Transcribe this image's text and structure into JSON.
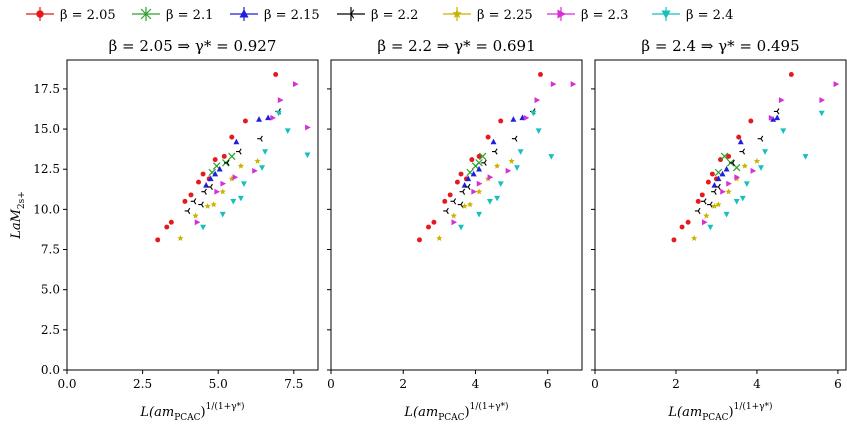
{
  "legend": [
    {
      "label": "β = 2.05",
      "color": "#e41a1c",
      "marker": "circle"
    },
    {
      "label": "β = 2.1",
      "color": "#2ca02c",
      "marker": "x"
    },
    {
      "label": "β = 2.15",
      "color": "#1f1fe0",
      "marker": "triangle-up"
    },
    {
      "label": "β = 2.2",
      "color": "#000000",
      "marker": "tri-left"
    },
    {
      "label": "β = 2.25",
      "color": "#c8b400",
      "marker": "star"
    },
    {
      "label": "β = 2.3",
      "color": "#d62fd6",
      "marker": "triangle-right"
    },
    {
      "label": "β = 2.4",
      "color": "#17bfbf",
      "marker": "triangle-down"
    }
  ],
  "chart_data": [
    {
      "type": "scatter",
      "title": "β = 2.05 ⇒ γ* = 0.927",
      "xlabel": "L(am_PCAC)^{1/(1+γ*)}",
      "ylabel": "LaM_{2s+}",
      "xlim": [
        0,
        8.3
      ],
      "ylim": [
        0,
        19.3
      ],
      "xticks": [
        "0.0",
        "2.5",
        "5.0",
        "7.5"
      ],
      "xtick_values": [
        0,
        2.5,
        5.0,
        7.5
      ],
      "yticks": [
        "0.0",
        "2.5",
        "5.0",
        "7.5",
        "10.0",
        "12.5",
        "15.0",
        "17.5"
      ],
      "ytick_values": [
        0,
        2.5,
        5.0,
        7.5,
        10.0,
        12.5,
        15.0,
        17.5
      ],
      "series": [
        {
          "name": "β = 2.05",
          "points": [
            [
              3.0,
              8.1
            ],
            [
              3.3,
              8.9
            ],
            [
              3.45,
              9.2
            ],
            [
              3.9,
              10.5
            ],
            [
              4.1,
              10.9
            ],
            [
              4.35,
              11.7
            ],
            [
              4.5,
              12.2
            ],
            [
              4.7,
              11.9
            ],
            [
              4.9,
              13.1
            ],
            [
              5.2,
              13.3
            ],
            [
              5.45,
              14.5
            ],
            [
              5.9,
              15.5
            ],
            [
              6.9,
              18.4
            ]
          ]
        },
        {
          "name": "β = 2.1",
          "points": [
            [
              4.8,
              12.3
            ],
            [
              4.95,
              12.7
            ],
            [
              5.25,
              12.9
            ],
            [
              5.45,
              13.3
            ]
          ]
        },
        {
          "name": "β = 2.15",
          "points": [
            [
              4.6,
              11.5
            ],
            [
              4.75,
              11.9
            ],
            [
              4.9,
              12.2
            ],
            [
              5.05,
              12.5
            ],
            [
              5.6,
              14.2
            ],
            [
              6.35,
              15.6
            ],
            [
              6.65,
              15.7
            ]
          ]
        },
        {
          "name": "β = 2.2",
          "points": [
            [
              4.0,
              9.9
            ],
            [
              4.2,
              10.5
            ],
            [
              4.45,
              10.3
            ],
            [
              4.55,
              11.1
            ],
            [
              4.75,
              11.4
            ],
            [
              5.3,
              12.9
            ],
            [
              5.7,
              13.6
            ],
            [
              6.4,
              14.4
            ],
            [
              7.0,
              16.1
            ]
          ]
        },
        {
          "name": "β = 2.25",
          "points": [
            [
              3.75,
              8.2
            ],
            [
              4.25,
              9.6
            ],
            [
              4.65,
              10.2
            ],
            [
              4.85,
              10.3
            ],
            [
              5.15,
              11.1
            ],
            [
              5.45,
              11.9
            ],
            [
              5.75,
              12.7
            ],
            [
              6.3,
              13.0
            ]
          ]
        },
        {
          "name": "β = 2.3",
          "points": [
            [
              4.3,
              9.2
            ],
            [
              4.95,
              11.1
            ],
            [
              5.15,
              11.6
            ],
            [
              5.55,
              12.0
            ],
            [
              6.2,
              12.4
            ],
            [
              6.8,
              15.7
            ],
            [
              7.05,
              16.8
            ],
            [
              7.55,
              17.8
            ],
            [
              7.95,
              15.1
            ]
          ]
        },
        {
          "name": "β = 2.4",
          "points": [
            [
              4.5,
              8.9
            ],
            [
              5.15,
              9.7
            ],
            [
              5.5,
              10.5
            ],
            [
              5.75,
              10.7
            ],
            [
              5.85,
              11.6
            ],
            [
              6.45,
              12.6
            ],
            [
              6.55,
              13.6
            ],
            [
              7.3,
              14.9
            ],
            [
              7.0,
              16.0
            ],
            [
              7.95,
              13.4
            ]
          ]
        }
      ]
    },
    {
      "type": "scatter",
      "title": "β = 2.2 ⇒ γ* = 0.691",
      "xlabel": "L(am_PCAC)^{1/(1+γ*)}",
      "xlim": [
        0,
        6.95
      ],
      "ylim": [
        0,
        19.3
      ],
      "xticks": [
        "0",
        "2",
        "4",
        "6"
      ],
      "xtick_values": [
        0,
        2,
        4,
        6
      ],
      "series": [
        {
          "name": "β = 2.05",
          "points": [
            [
              2.45,
              8.1
            ],
            [
              2.7,
              8.9
            ],
            [
              2.85,
              9.2
            ],
            [
              3.15,
              10.5
            ],
            [
              3.3,
              10.9
            ],
            [
              3.5,
              11.7
            ],
            [
              3.6,
              12.2
            ],
            [
              3.75,
              11.9
            ],
            [
              3.9,
              13.1
            ],
            [
              4.1,
              13.3
            ],
            [
              4.35,
              14.5
            ],
            [
              4.7,
              15.5
            ],
            [
              5.8,
              18.4
            ]
          ]
        },
        {
          "name": "β = 2.1",
          "points": [
            [
              3.85,
              12.3
            ],
            [
              4.0,
              12.7
            ],
            [
              4.1,
              12.9
            ],
            [
              4.2,
              13.3
            ]
          ]
        },
        {
          "name": "β = 2.15",
          "points": [
            [
              3.7,
              11.5
            ],
            [
              3.8,
              11.9
            ],
            [
              3.95,
              12.2
            ],
            [
              4.1,
              12.5
            ],
            [
              4.5,
              14.2
            ],
            [
              5.05,
              15.6
            ],
            [
              5.3,
              15.7
            ]
          ]
        },
        {
          "name": "β = 2.2",
          "points": [
            [
              3.2,
              9.9
            ],
            [
              3.4,
              10.5
            ],
            [
              3.6,
              10.3
            ],
            [
              3.65,
              11.1
            ],
            [
              3.8,
              11.4
            ],
            [
              4.25,
              12.9
            ],
            [
              4.55,
              13.6
            ],
            [
              5.1,
              14.4
            ],
            [
              5.6,
              16.1
            ]
          ]
        },
        {
          "name": "β = 2.25",
          "points": [
            [
              3.0,
              8.2
            ],
            [
              3.4,
              9.6
            ],
            [
              3.7,
              10.2
            ],
            [
              3.85,
              10.3
            ],
            [
              4.1,
              11.1
            ],
            [
              4.35,
              11.9
            ],
            [
              4.6,
              12.7
            ],
            [
              5.0,
              13.0
            ]
          ]
        },
        {
          "name": "β = 2.3",
          "points": [
            [
              3.4,
              9.2
            ],
            [
              3.95,
              11.1
            ],
            [
              4.1,
              11.6
            ],
            [
              4.4,
              12.0
            ],
            [
              4.9,
              12.4
            ],
            [
              5.4,
              15.7
            ],
            [
              5.7,
              16.8
            ],
            [
              6.15,
              17.8
            ],
            [
              6.7,
              17.8
            ]
          ]
        },
        {
          "name": "β = 2.4",
          "points": [
            [
              3.6,
              8.9
            ],
            [
              4.1,
              9.7
            ],
            [
              4.4,
              10.5
            ],
            [
              4.6,
              10.7
            ],
            [
              4.7,
              11.6
            ],
            [
              5.15,
              12.6
            ],
            [
              5.25,
              13.6
            ],
            [
              5.75,
              14.9
            ],
            [
              5.6,
              16.0
            ],
            [
              6.1,
              13.3
            ]
          ]
        }
      ]
    },
    {
      "type": "scatter",
      "title": "β = 2.4 ⇒ γ* = 0.495",
      "xlabel": "L(am_PCAC)^{1/(1+γ*)}",
      "xlim": [
        0,
        6.2
      ],
      "ylim": [
        0,
        19.3
      ],
      "xticks": [
        "0",
        "2",
        "4",
        "6"
      ],
      "xtick_values": [
        0,
        2,
        4,
        6
      ],
      "series": [
        {
          "name": "β = 2.05",
          "points": [
            [
              1.95,
              8.1
            ],
            [
              2.15,
              8.9
            ],
            [
              2.3,
              9.2
            ],
            [
              2.55,
              10.5
            ],
            [
              2.65,
              10.9
            ],
            [
              2.8,
              11.7
            ],
            [
              2.9,
              12.2
            ],
            [
              3.0,
              11.9
            ],
            [
              3.1,
              13.1
            ],
            [
              3.3,
              13.3
            ],
            [
              3.55,
              14.5
            ],
            [
              3.85,
              15.5
            ],
            [
              4.85,
              18.4
            ]
          ]
        },
        {
          "name": "β = 2.1",
          "points": [
            [
              3.05,
              12.3
            ],
            [
              3.2,
              13.3
            ],
            [
              3.35,
              12.9
            ],
            [
              3.5,
              12.6
            ]
          ]
        },
        {
          "name": "β = 2.15",
          "points": [
            [
              2.95,
              11.5
            ],
            [
              3.05,
              11.9
            ],
            [
              3.15,
              12.2
            ],
            [
              3.25,
              12.5
            ],
            [
              3.6,
              14.2
            ],
            [
              4.4,
              15.6
            ],
            [
              4.5,
              15.7
            ]
          ]
        },
        {
          "name": "β = 2.2",
          "points": [
            [
              2.55,
              9.9
            ],
            [
              2.7,
              10.5
            ],
            [
              2.85,
              10.3
            ],
            [
              2.95,
              11.1
            ],
            [
              3.05,
              11.4
            ],
            [
              3.4,
              12.9
            ],
            [
              3.65,
              13.6
            ],
            [
              4.1,
              14.4
            ],
            [
              4.5,
              16.1
            ]
          ]
        },
        {
          "name": "β = 2.25",
          "points": [
            [
              2.45,
              8.2
            ],
            [
              2.75,
              9.6
            ],
            [
              2.95,
              10.2
            ],
            [
              3.05,
              10.3
            ],
            [
              3.3,
              11.1
            ],
            [
              3.5,
              11.9
            ],
            [
              3.7,
              12.7
            ],
            [
              4.0,
              13.0
            ]
          ]
        },
        {
          "name": "β = 2.3",
          "points": [
            [
              2.7,
              9.2
            ],
            [
              3.15,
              11.1
            ],
            [
              3.3,
              11.6
            ],
            [
              3.5,
              12.0
            ],
            [
              3.9,
              12.4
            ],
            [
              4.35,
              15.7
            ],
            [
              4.6,
              16.8
            ],
            [
              5.6,
              16.8
            ],
            [
              5.95,
              17.8
            ]
          ]
        },
        {
          "name": "β = 2.4",
          "points": [
            [
              2.85,
              8.9
            ],
            [
              3.25,
              9.7
            ],
            [
              3.5,
              10.5
            ],
            [
              3.65,
              10.7
            ],
            [
              3.75,
              11.6
            ],
            [
              4.1,
              12.6
            ],
            [
              4.2,
              13.6
            ],
            [
              4.65,
              14.9
            ],
            [
              5.6,
              16.0
            ],
            [
              5.2,
              13.3
            ]
          ]
        }
      ]
    }
  ]
}
